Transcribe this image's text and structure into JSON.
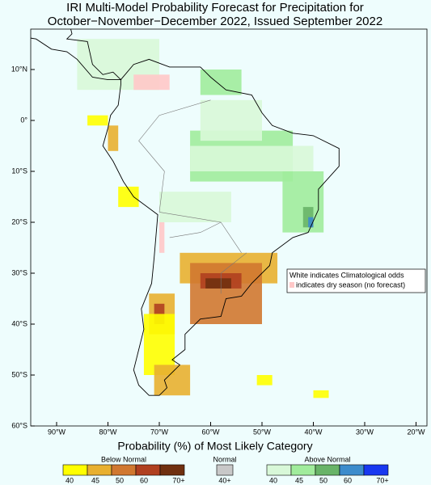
{
  "header": {
    "title_lines": [
      "IRI Multi-Model Probability Forecast for Precipitation for",
      "October−November−December 2022, Issued September 2022"
    ]
  },
  "map": {
    "lat_labels": [
      "10°N",
      "0°",
      "10°S",
      "20°S",
      "30°S",
      "40°S",
      "50°S",
      "60°S"
    ],
    "lon_labels": [
      "90°W",
      "80°W",
      "70°W",
      "60°W",
      "50°W",
      "40°W",
      "30°W",
      "20°W"
    ],
    "notes": [
      "White indicates Climatological odds",
      "indicates dry season (no forecast)"
    ]
  },
  "legend": {
    "title": "Probability (%) of Most Likely Category",
    "groups": [
      {
        "name": "Below Normal",
        "labels": [
          "40",
          "45",
          "50",
          "60",
          "70+"
        ],
        "colors": [
          "#ffff00",
          "#e8b030",
          "#d07830",
          "#b04020",
          "#703010"
        ]
      },
      {
        "name": "Normal",
        "labels": [
          "40+"
        ],
        "colors": [
          "#c8c8c8"
        ]
      },
      {
        "name": "Above Normal",
        "labels": [
          "40",
          "45",
          "50",
          "60",
          "70+"
        ],
        "colors": [
          "#d8f8d8",
          "#a0ec9c",
          "#68b468",
          "#3c8ccc",
          "#1838f0"
        ]
      }
    ]
  }
}
